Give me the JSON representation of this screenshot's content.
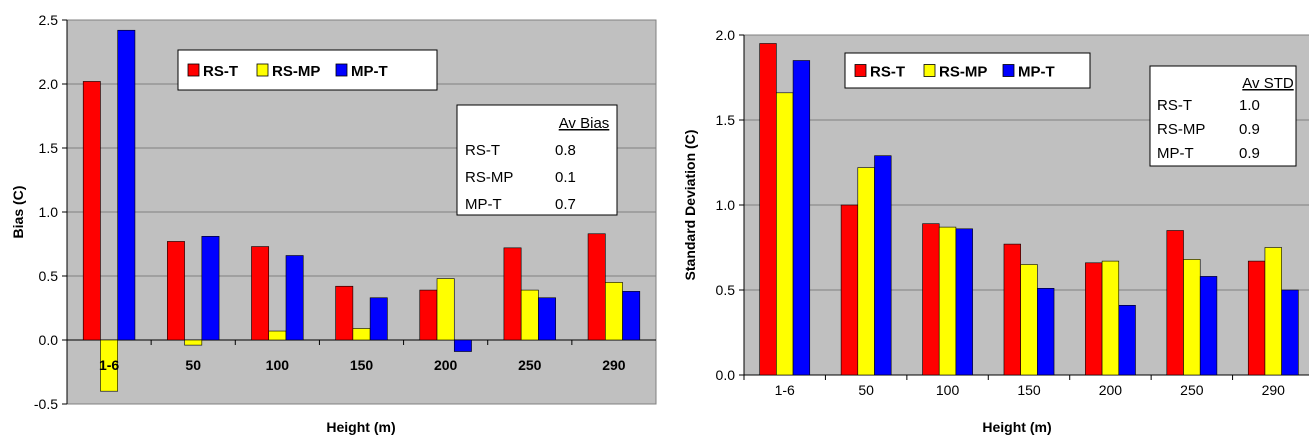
{
  "chart_data": [
    {
      "type": "bar",
      "title": "",
      "xlabel": "Height (m)",
      "ylabel": "Bias (C)",
      "ylim": [
        -0.5,
        2.5
      ],
      "yticks": [
        "2.5",
        "2.0",
        "1.5",
        "1.0",
        "0.5",
        "0.0",
        "-0.5"
      ],
      "categories": [
        "1-6",
        "50",
        "100",
        "150",
        "200",
        "250",
        "290"
      ],
      "series": [
        {
          "name": "RS-T",
          "color": "#ff0000",
          "values": [
            2.02,
            0.77,
            0.73,
            0.42,
            0.39,
            0.72,
            0.83
          ]
        },
        {
          "name": "RS-MP",
          "color": "#ffff00",
          "values": [
            -0.4,
            -0.04,
            0.07,
            0.09,
            0.48,
            0.39,
            0.45
          ]
        },
        {
          "name": "MP-T",
          "color": "#0000ff",
          "values": [
            2.42,
            0.81,
            0.66,
            0.33,
            -0.09,
            0.33,
            0.38
          ]
        }
      ],
      "grid": true,
      "legend_position": "top-center",
      "summary_table": {
        "header": "Av Bias",
        "rows": [
          {
            "label": "RS-T",
            "value": "0.8"
          },
          {
            "label": "RS-MP",
            "value": "0.1"
          },
          {
            "label": "MP-T",
            "value": "0.7"
          }
        ]
      }
    },
    {
      "type": "bar",
      "title": "",
      "xlabel": "Height (m)",
      "ylabel": "Standard Deviation (C)",
      "ylim": [
        0.0,
        2.0
      ],
      "yticks": [
        "2.0",
        "1.5",
        "1.0",
        "0.5",
        "0.0"
      ],
      "categories": [
        "1-6",
        "50",
        "100",
        "150",
        "200",
        "250",
        "290"
      ],
      "series": [
        {
          "name": "RS-T",
          "color": "#ff0000",
          "values": [
            1.95,
            1.0,
            0.89,
            0.77,
            0.66,
            0.85,
            0.67
          ]
        },
        {
          "name": "RS-MP",
          "color": "#ffff00",
          "values": [
            1.66,
            1.22,
            0.87,
            0.65,
            0.67,
            0.68,
            0.75
          ]
        },
        {
          "name": "MP-T",
          "color": "#0000ff",
          "values": [
            1.85,
            1.29,
            0.86,
            0.51,
            0.41,
            0.58,
            0.5
          ]
        }
      ],
      "grid": true,
      "legend_position": "top-left",
      "summary_table": {
        "header": "Av STD",
        "rows": [
          {
            "label": "RS-T",
            "value": "1.0"
          },
          {
            "label": "RS-MP",
            "value": "0.9"
          },
          {
            "label": "MP-T",
            "value": "0.9"
          }
        ]
      }
    }
  ]
}
